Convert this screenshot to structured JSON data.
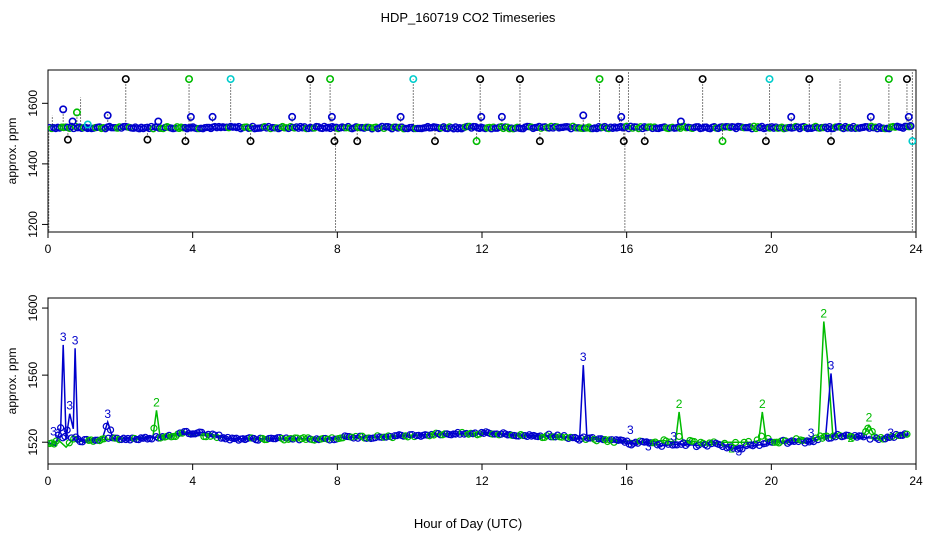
{
  "title": "HDP_160719  CO2 Timeseries",
  "xlabel": "Hour of Day (UTC)",
  "colors": {
    "black": "#000000",
    "blue": "#0000cc",
    "green": "#00bb00",
    "cyan": "#00cccc"
  },
  "chart_data": [
    {
      "type": "scatter",
      "ylabel": "approx. ppm",
      "xlim": [
        0,
        24
      ],
      "ylim": [
        1175,
        1710
      ],
      "xticks": [
        0,
        4,
        8,
        12,
        16,
        20,
        24
      ],
      "yticks": [
        1200,
        1400,
        1600
      ],
      "baseline": 1520,
      "outliers_high": [
        [
          0.42,
          1580
        ],
        [
          0.55,
          1480
        ],
        [
          0.68,
          1540
        ],
        [
          0.8,
          1570
        ],
        [
          1.1,
          1530
        ],
        [
          1.65,
          1560
        ],
        [
          2.15,
          1680
        ],
        [
          2.75,
          1480
        ],
        [
          3.05,
          1540
        ],
        [
          3.8,
          1475
        ],
        [
          3.9,
          1680
        ],
        [
          3.95,
          1555
        ],
        [
          4.55,
          1555
        ],
        [
          5.05,
          1680
        ],
        [
          5.6,
          1475
        ],
        [
          6.75,
          1555
        ],
        [
          7.25,
          1680
        ],
        [
          7.8,
          1680
        ],
        [
          7.85,
          1555
        ],
        [
          7.92,
          1475
        ],
        [
          8.55,
          1475
        ],
        [
          9.75,
          1555
        ],
        [
          10.1,
          1680
        ],
        [
          10.7,
          1475
        ],
        [
          11.85,
          1475
        ],
        [
          11.95,
          1680
        ],
        [
          11.98,
          1555
        ],
        [
          12.55,
          1555
        ],
        [
          13.05,
          1680
        ],
        [
          13.6,
          1475
        ],
        [
          14.8,
          1560
        ],
        [
          15.25,
          1680
        ],
        [
          15.8,
          1680
        ],
        [
          15.85,
          1555
        ],
        [
          15.92,
          1475
        ],
        [
          16.5,
          1475
        ],
        [
          17.5,
          1540
        ],
        [
          18.1,
          1680
        ],
        [
          18.65,
          1475
        ],
        [
          19.85,
          1475
        ],
        [
          19.95,
          1680
        ],
        [
          20.55,
          1555
        ],
        [
          21.05,
          1680
        ],
        [
          21.65,
          1475
        ],
        [
          22.75,
          1555
        ],
        [
          23.25,
          1680
        ],
        [
          23.75,
          1680
        ],
        [
          23.8,
          1555
        ],
        [
          23.85,
          1525
        ],
        [
          23.9,
          1475
        ]
      ]
    },
    {
      "type": "line",
      "ylabel": "approx. ppm",
      "xlim": [
        0,
        24
      ],
      "ylim": [
        1507,
        1606
      ],
      "xticks": [
        0,
        4,
        8,
        12,
        16,
        20,
        24
      ],
      "yticks": [
        1520,
        1560,
        1600
      ],
      "series": [
        {
          "name": "3",
          "x": [
            0.0,
            0.2,
            0.35,
            0.42,
            0.5,
            0.6,
            0.7,
            0.75,
            0.82,
            0.88,
            1.0,
            1.5,
            1.65,
            1.8,
            2.5,
            3.0,
            3.5,
            3.8,
            4.0,
            4.3,
            5.0,
            6.0,
            7.0,
            7.5,
            7.9,
            8.1,
            9.0,
            10.0,
            11.0,
            11.5,
            11.9,
            12.1,
            13.0,
            14.0,
            14.7,
            14.8,
            14.9,
            15.5,
            15.9,
            16.1,
            16.5,
            17.0,
            17.5,
            18.0,
            18.5,
            19.0,
            19.5,
            19.9,
            20.1,
            20.5,
            21.0,
            21.5,
            21.65,
            21.8,
            22.0,
            22.5,
            23.0,
            23.5,
            23.8
          ],
          "y": [
            1520,
            1518,
            1528,
            1578,
            1522,
            1537,
            1528,
            1576,
            1522,
            1521,
            1521,
            1522,
            1532,
            1522,
            1522,
            1523,
            1525,
            1526,
            1525,
            1526,
            1522,
            1522,
            1522,
            1522,
            1522,
            1523,
            1523,
            1524,
            1525,
            1525,
            1525,
            1526,
            1524,
            1524,
            1522,
            1566,
            1523,
            1522,
            1521,
            1519,
            1520,
            1518,
            1519,
            1518,
            1519,
            1516,
            1518,
            1519,
            1521,
            1520,
            1520,
            1523,
            1561,
            1524,
            1524,
            1523,
            1522,
            1524,
            1525
          ]
        },
        {
          "name": "2",
          "x": [
            0.0,
            0.3,
            0.5,
            0.7,
            0.8,
            1.0,
            2.0,
            2.9,
            3.0,
            3.1,
            3.5,
            3.8,
            4.0,
            4.5,
            5.0,
            6.0,
            7.0,
            7.9,
            8.1,
            9.0,
            10.0,
            11.0,
            11.9,
            12.1,
            13.0,
            14.0,
            15.0,
            15.5,
            15.9,
            16.1,
            16.5,
            17.0,
            17.35,
            17.45,
            17.55,
            18.0,
            18.5,
            19.0,
            19.5,
            19.65,
            19.75,
            19.85,
            20.1,
            20.5,
            21.0,
            21.3,
            21.45,
            21.55,
            21.7,
            22.0,
            22.5,
            22.7,
            22.9,
            23.5,
            23.8
          ],
          "y": [
            1518,
            1521,
            1517,
            1522,
            1520,
            1521,
            1522,
            1523,
            1539,
            1523,
            1524,
            1525,
            1524,
            1524,
            1522,
            1522,
            1522,
            1522,
            1523,
            1523,
            1524,
            1525,
            1525,
            1525,
            1524,
            1523,
            1522,
            1521,
            1520,
            1521,
            1520,
            1521,
            1520,
            1538,
            1521,
            1520,
            1520,
            1520,
            1520,
            1521,
            1538,
            1522,
            1520,
            1521,
            1522,
            1523,
            1592,
            1570,
            1524,
            1524,
            1522,
            1530,
            1522,
            1524,
            1524
          ]
        }
      ]
    }
  ]
}
